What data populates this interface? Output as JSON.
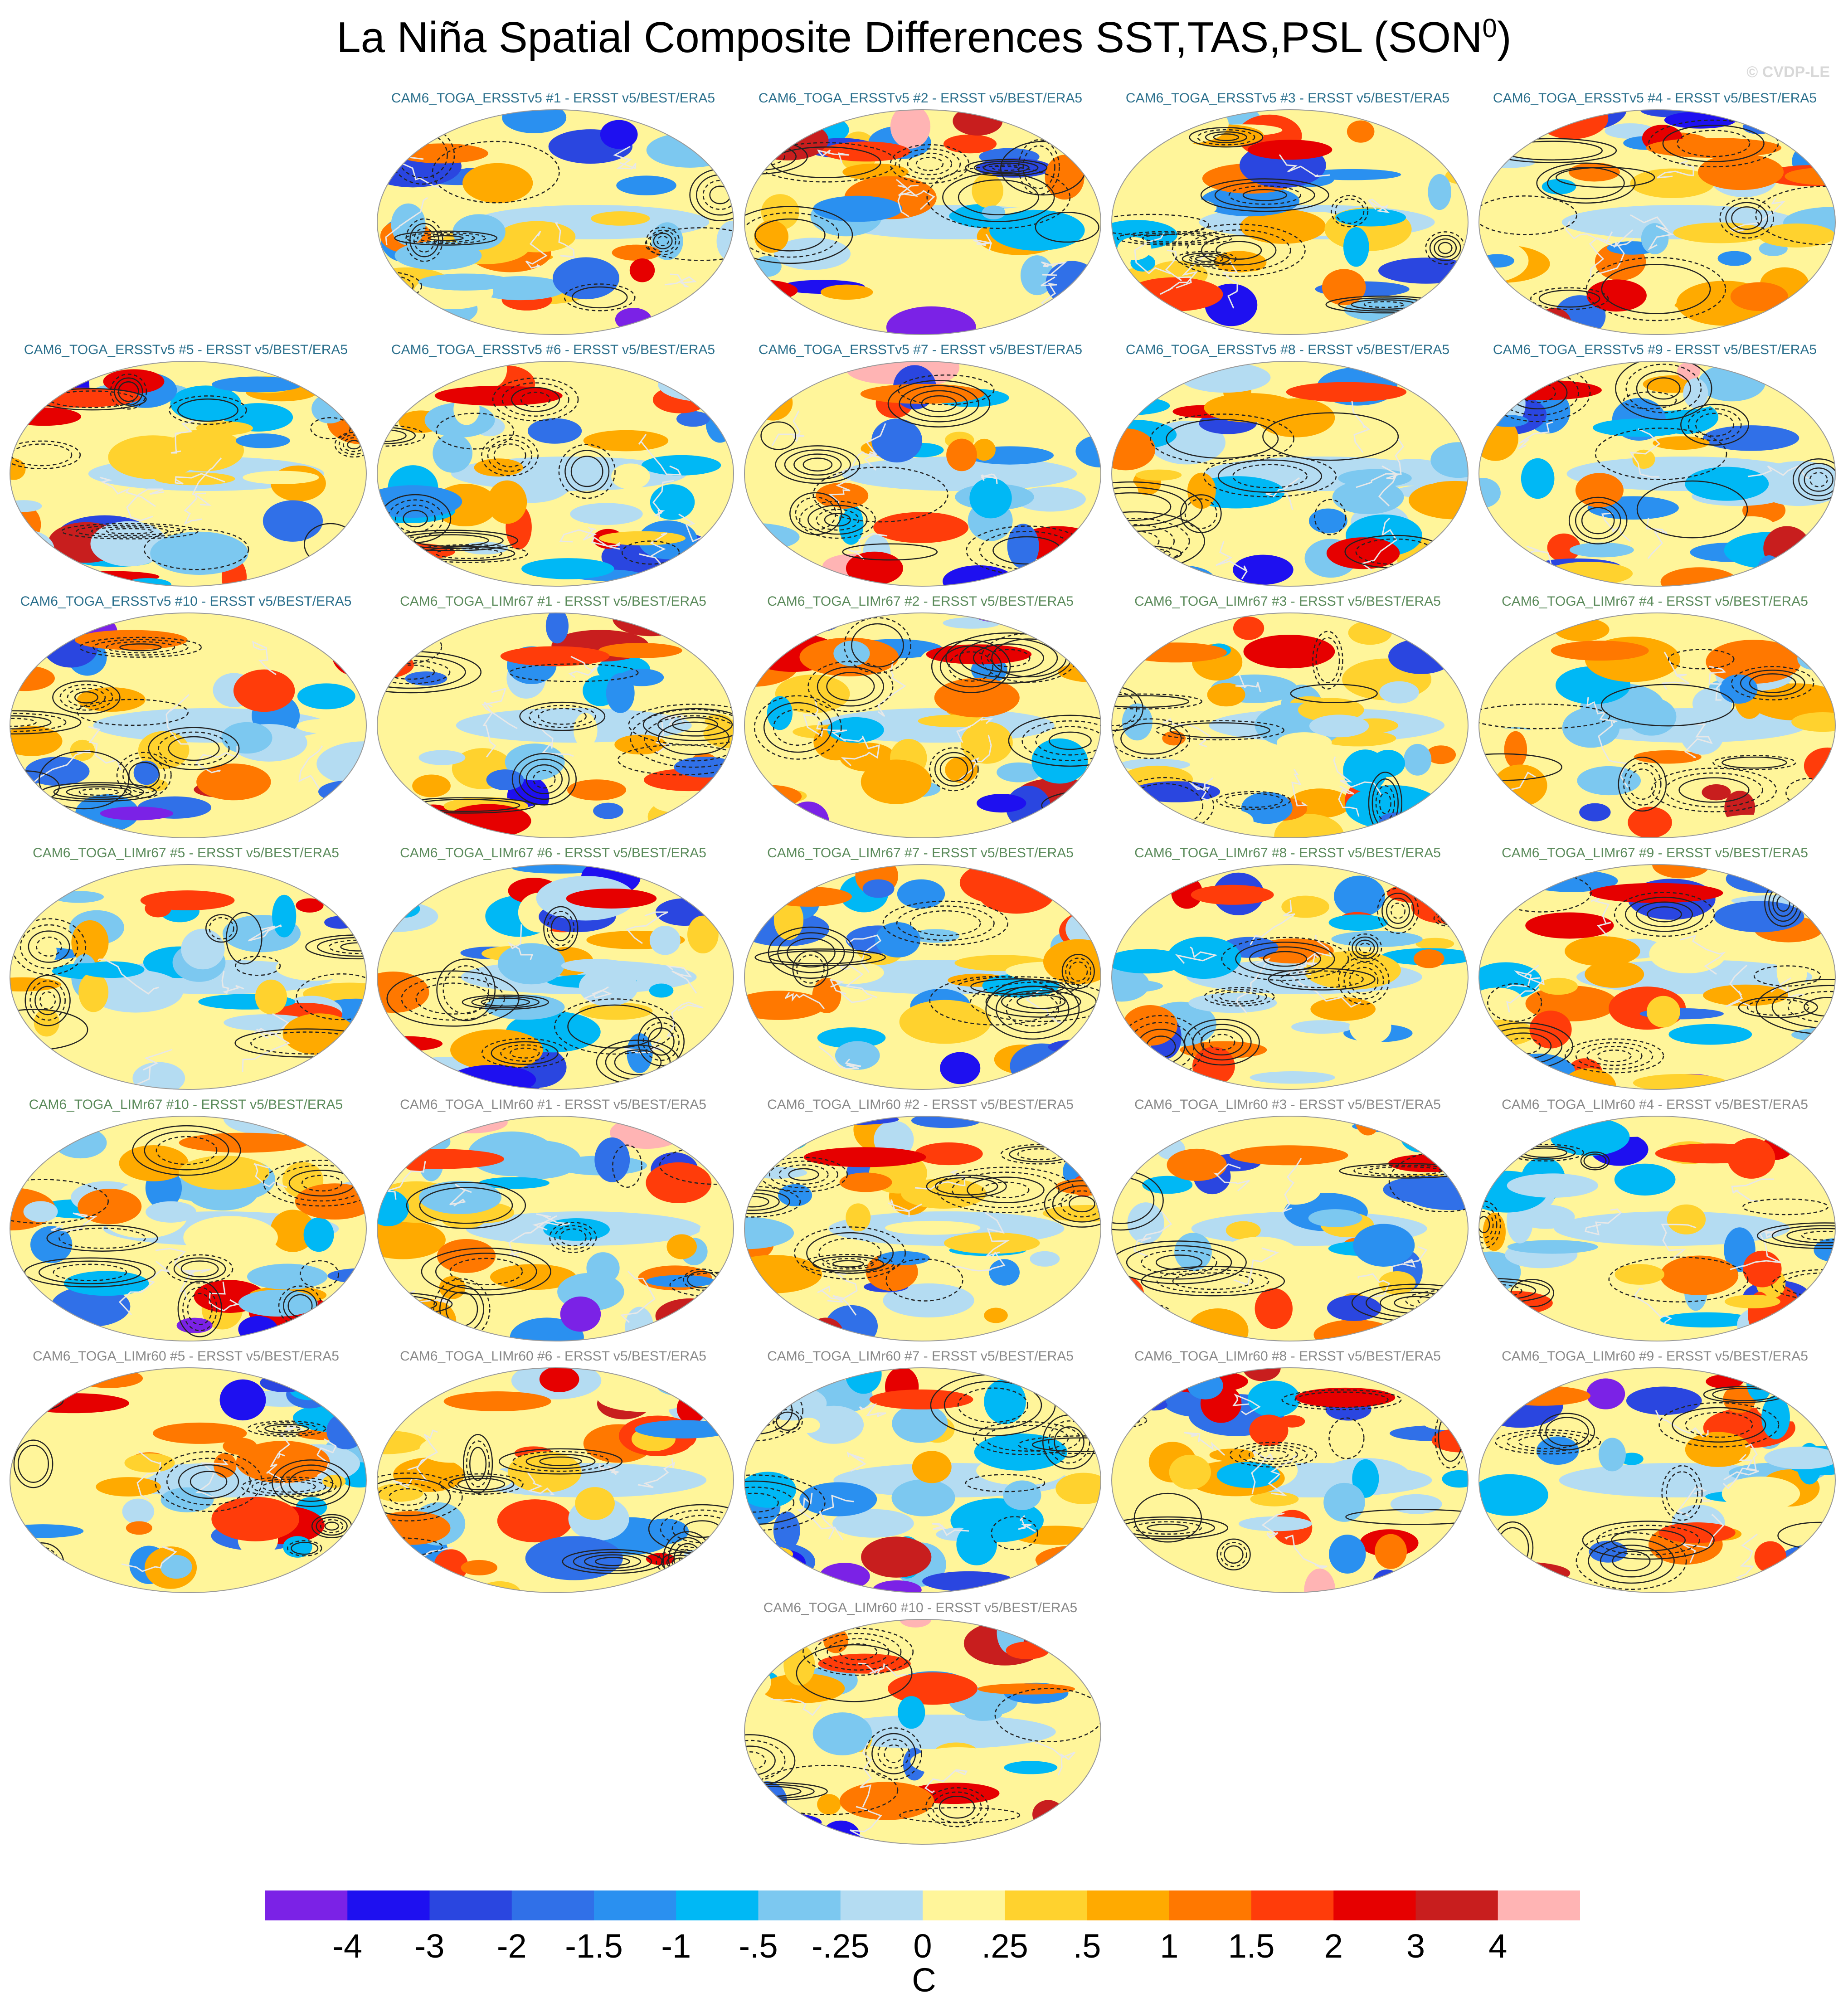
{
  "figure": {
    "title": "La Niña Spatial Composite Differences SST,TAS,PSL (SON",
    "title_sup": "0",
    "title_close": ")",
    "watermark": "© CVDP-LE"
  },
  "colors": {
    "title_ersst": "#2a6f8c",
    "title_limr67": "#5a8a5a",
    "title_limr60": "#888888"
  },
  "chart_data": {
    "type": "heatmap",
    "panels": [
      {
        "label": "CAM6_TOGA_ERSSTv5 #1 - ERSST v5/BEST/ERA5",
        "group": "ersst",
        "seed": 11
      },
      {
        "label": "CAM6_TOGA_ERSSTv5 #2 - ERSST v5/BEST/ERA5",
        "group": "ersst",
        "seed": 12
      },
      {
        "label": "CAM6_TOGA_ERSSTv5 #3 - ERSST v5/BEST/ERA5",
        "group": "ersst",
        "seed": 13
      },
      {
        "label": "CAM6_TOGA_ERSSTv5 #4 - ERSST v5/BEST/ERA5",
        "group": "ersst",
        "seed": 14
      },
      {
        "label": "CAM6_TOGA_ERSSTv5 #5 - ERSST v5/BEST/ERA5",
        "group": "ersst",
        "seed": 15
      },
      {
        "label": "CAM6_TOGA_ERSSTv5 #6 - ERSST v5/BEST/ERA5",
        "group": "ersst",
        "seed": 16
      },
      {
        "label": "CAM6_TOGA_ERSSTv5 #7 - ERSST v5/BEST/ERA5",
        "group": "ersst",
        "seed": 17
      },
      {
        "label": "CAM6_TOGA_ERSSTv5 #8 - ERSST v5/BEST/ERA5",
        "group": "ersst",
        "seed": 18
      },
      {
        "label": "CAM6_TOGA_ERSSTv5 #9 - ERSST v5/BEST/ERA5",
        "group": "ersst",
        "seed": 19
      },
      {
        "label": "CAM6_TOGA_ERSSTv5 #10 - ERSST v5/BEST/ERA5",
        "group": "ersst",
        "seed": 20
      },
      {
        "label": "CAM6_TOGA_LIMr67 #1 - ERSST v5/BEST/ERA5",
        "group": "limr67",
        "seed": 21
      },
      {
        "label": "CAM6_TOGA_LIMr67 #2 - ERSST v5/BEST/ERA5",
        "group": "limr67",
        "seed": 22
      },
      {
        "label": "CAM6_TOGA_LIMr67 #3 - ERSST v5/BEST/ERA5",
        "group": "limr67",
        "seed": 23
      },
      {
        "label": "CAM6_TOGA_LIMr67 #4 - ERSST v5/BEST/ERA5",
        "group": "limr67",
        "seed": 24
      },
      {
        "label": "CAM6_TOGA_LIMr67 #5 - ERSST v5/BEST/ERA5",
        "group": "limr67",
        "seed": 25
      },
      {
        "label": "CAM6_TOGA_LIMr67 #6 - ERSST v5/BEST/ERA5",
        "group": "limr67",
        "seed": 26
      },
      {
        "label": "CAM6_TOGA_LIMr67 #7 - ERSST v5/BEST/ERA5",
        "group": "limr67",
        "seed": 27
      },
      {
        "label": "CAM6_TOGA_LIMr67 #8 - ERSST v5/BEST/ERA5",
        "group": "limr67",
        "seed": 28
      },
      {
        "label": "CAM6_TOGA_LIMr67 #9 - ERSST v5/BEST/ERA5",
        "group": "limr67",
        "seed": 29
      },
      {
        "label": "CAM6_TOGA_LIMr67 #10 - ERSST v5/BEST/ERA5",
        "group": "limr67",
        "seed": 30
      },
      {
        "label": "CAM6_TOGA_LIMr60 #1 - ERSST v5/BEST/ERA5",
        "group": "limr60",
        "seed": 31
      },
      {
        "label": "CAM6_TOGA_LIMr60 #2 - ERSST v5/BEST/ERA5",
        "group": "limr60",
        "seed": 32
      },
      {
        "label": "CAM6_TOGA_LIMr60 #3 - ERSST v5/BEST/ERA5",
        "group": "limr60",
        "seed": 33
      },
      {
        "label": "CAM6_TOGA_LIMr60 #4 - ERSST v5/BEST/ERA5",
        "group": "limr60",
        "seed": 34
      },
      {
        "label": "CAM6_TOGA_LIMr60 #5 - ERSST v5/BEST/ERA5",
        "group": "limr60",
        "seed": 35
      },
      {
        "label": "CAM6_TOGA_LIMr60 #6 - ERSST v5/BEST/ERA5",
        "group": "limr60",
        "seed": 36
      },
      {
        "label": "CAM6_TOGA_LIMr60 #7 - ERSST v5/BEST/ERA5",
        "group": "limr60",
        "seed": 37
      },
      {
        "label": "CAM6_TOGA_LIMr60 #8 - ERSST v5/BEST/ERA5",
        "group": "limr60",
        "seed": 38
      },
      {
        "label": "CAM6_TOGA_LIMr60 #9 - ERSST v5/BEST/ERA5",
        "group": "limr60",
        "seed": 39
      },
      {
        "label": "CAM6_TOGA_LIMr60 #10 - ERSST v5/BEST/ERA5",
        "group": "limr60",
        "seed": 40
      }
    ],
    "colorbar": {
      "levels": [
        "-4",
        "-3",
        "-2",
        "-1.5",
        "-1",
        "-.5",
        "-.25",
        "0",
        ".25",
        ".5",
        "1",
        "1.5",
        "2",
        "3",
        "4"
      ],
      "colors": [
        "#7b22e6",
        "#1e10f0",
        "#2a46e0",
        "#3070e8",
        "#2a90f0",
        "#00b8f5",
        "#7cc8f0",
        "#b4dcf2",
        "#fff59a",
        "#ffd22e",
        "#ffaa00",
        "#ff7800",
        "#ff3c0a",
        "#e60000",
        "#c81e1e",
        "#ffb4b4"
      ],
      "units": "C"
    }
  }
}
